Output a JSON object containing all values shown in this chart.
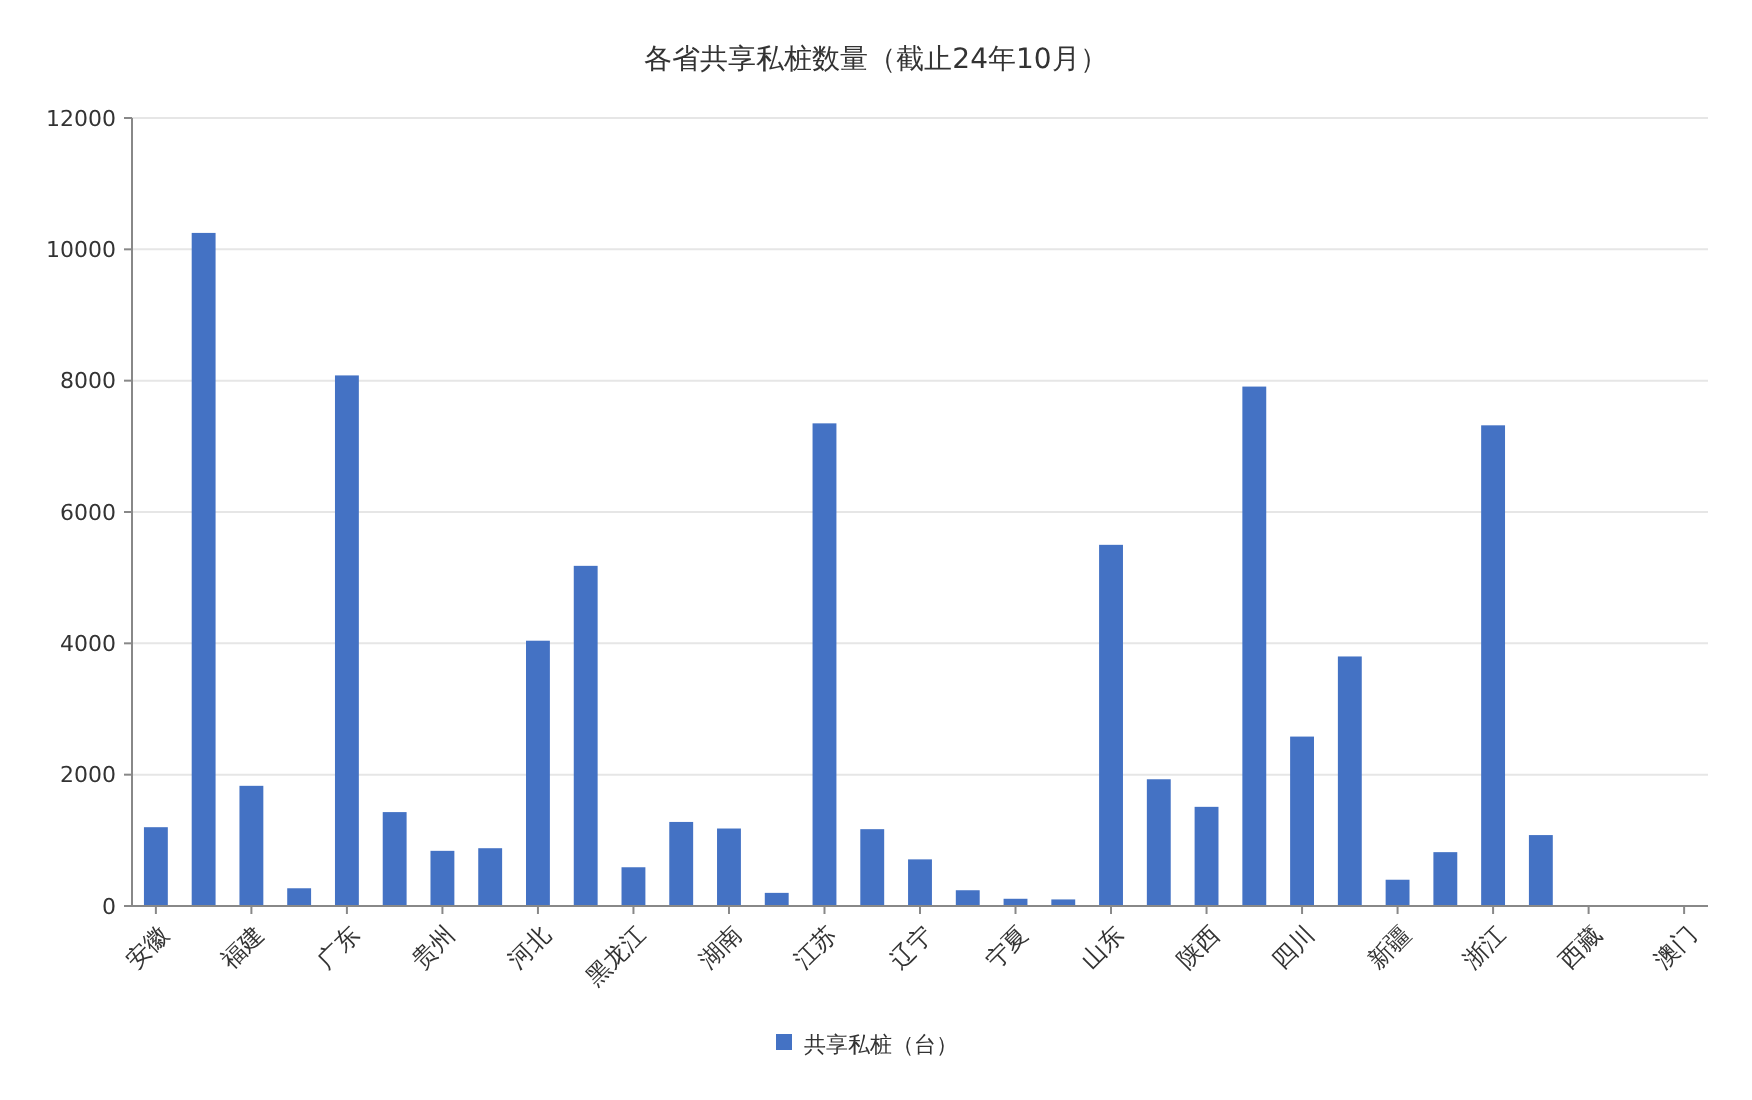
{
  "chart_data": {
    "type": "bar",
    "title": "各省共享私桩数量（截止24年10月）",
    "categories": [
      "安徽",
      null,
      "福建",
      null,
      "广东",
      null,
      "贵州",
      null,
      "河北",
      null,
      "黑龙江",
      null,
      "湖南",
      null,
      "江苏",
      null,
      "辽宁",
      null,
      "宁夏",
      null,
      "山东",
      null,
      "陕西",
      null,
      "四川",
      null,
      "新疆",
      null,
      "浙江",
      null,
      "西藏",
      null,
      "澳门"
    ],
    "series": [
      {
        "name": "共享私桩（台）",
        "color": "#4472c4",
        "values": [
          1200,
          10250,
          1830,
          270,
          8080,
          1430,
          840,
          880,
          4040,
          5180,
          590,
          1280,
          1180,
          200,
          7350,
          1170,
          710,
          240,
          110,
          100,
          5500,
          1930,
          1510,
          7910,
          2580,
          3800,
          400,
          820,
          7320,
          1080,
          0,
          0,
          0
        ]
      }
    ],
    "ylim": [
      0,
      12000
    ],
    "yticks": [
      0,
      2000,
      4000,
      6000,
      8000,
      10000,
      12000
    ],
    "grid": "y",
    "legend": "bottom"
  }
}
